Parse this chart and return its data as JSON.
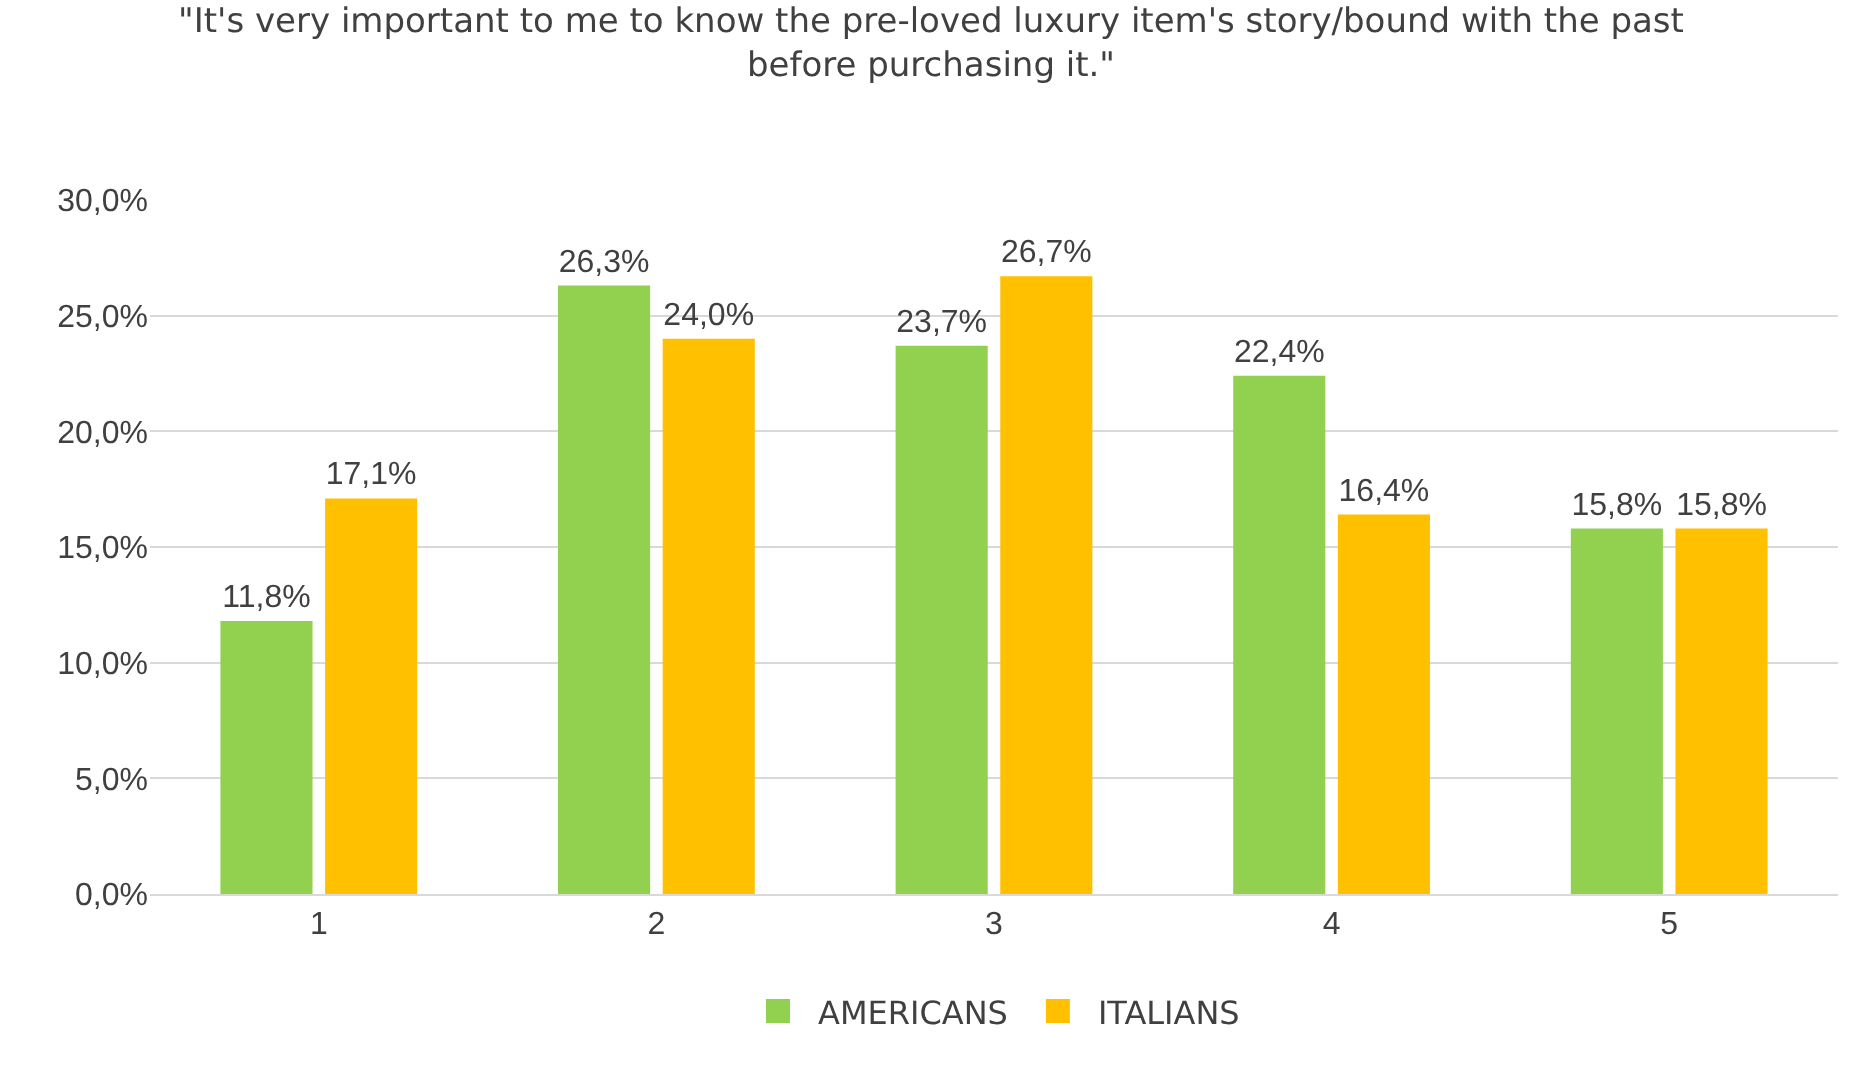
{
  "chart_data": {
    "type": "bar",
    "title": "\"It's very important to me to know the pre-loved luxury item's story/bound with the past before purchasing it.\"",
    "categories": [
      "1",
      "2",
      "3",
      "4",
      "5"
    ],
    "series": [
      {
        "name": "AMERICANS",
        "color": "#92d050",
        "values": [
          11.8,
          26.3,
          23.7,
          22.4,
          15.8
        ],
        "value_labels": [
          "11,8%",
          "26,3%",
          "23,7%",
          "22,4%",
          "15,8%"
        ]
      },
      {
        "name": "ITALIANS",
        "color": "#ffc000",
        "values": [
          17.1,
          24.0,
          26.7,
          16.4,
          15.8
        ],
        "value_labels": [
          "17,1%",
          "24,0%",
          "26,7%",
          "16,4%",
          "15,8%"
        ]
      }
    ],
    "ylim": [
      0,
      30
    ],
    "yticks": [
      {
        "value": 0,
        "label": "0,0%"
      },
      {
        "value": 5,
        "label": "5,0%"
      },
      {
        "value": 10,
        "label": "10,0%"
      },
      {
        "value": 15,
        "label": "15,0%"
      },
      {
        "value": 20,
        "label": "20,0%"
      },
      {
        "value": 25,
        "label": "25,0%"
      },
      {
        "value": 30,
        "label": "30,0%"
      }
    ],
    "grid": "y",
    "legend": "bottom"
  }
}
